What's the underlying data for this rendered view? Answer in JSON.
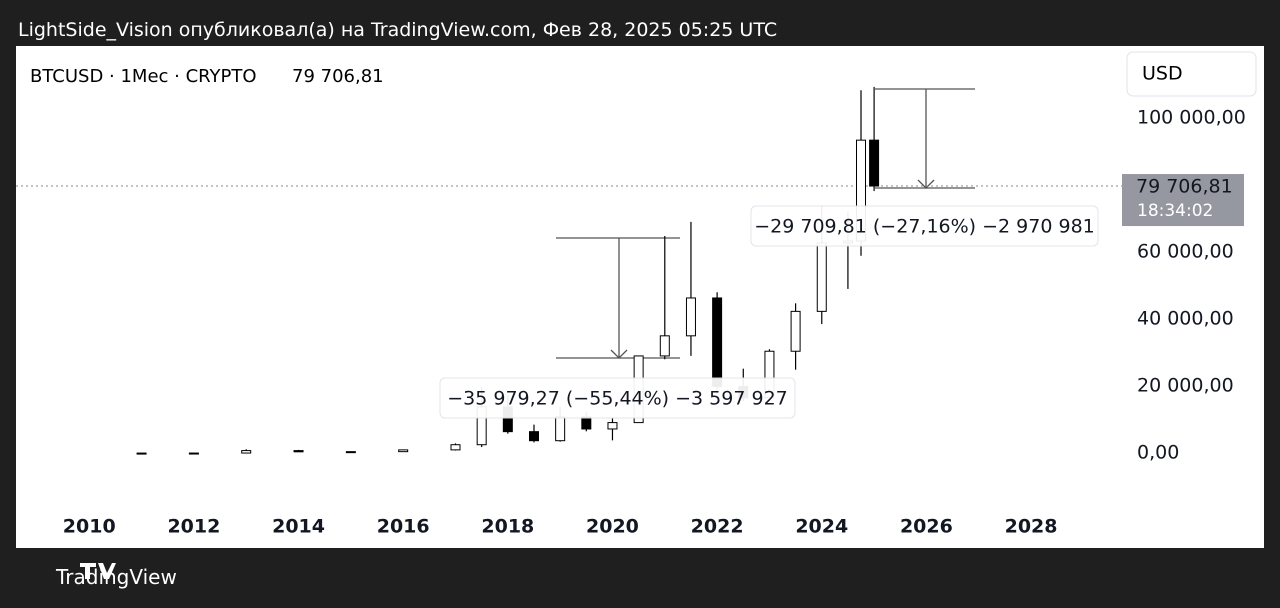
{
  "attribution": "LightSide_Vision опубликовал(а) на TradingView.com, Фев 28, 2025 05:25 UTC",
  "brand": "TradingView",
  "chart_data": {
    "type": "candlestick",
    "title": "BTCUSD · 1Мес · CRYPTO",
    "title_price": "79 706,81",
    "currency": "USD",
    "up_color": "#ffffff",
    "down_color": "#000000",
    "edge_color": "#000000",
    "x": [
      2011.0,
      2012.0,
      2013.0,
      2014.0,
      2015.0,
      2016.0,
      2017.0,
      2017.5,
      2018.0,
      2018.5,
      2019.0,
      2019.5,
      2020.0,
      2020.5,
      2021.0,
      2021.5,
      2022.0,
      2022.5,
      2023.0,
      2023.5,
      2024.0,
      2024.5,
      2024.75,
      2025.0
    ],
    "open": [
      0.3,
      5,
      13,
      750,
      320,
      430,
      960,
      2500,
      13800,
      6400,
      3700,
      10800,
      7200,
      9100,
      29000,
      35000,
      46300,
      19900,
      16500,
      30400,
      42300,
      62700,
      63300,
      93400
    ],
    "high": [
      30,
      13,
      1150,
      950,
      500,
      1000,
      2900,
      19700,
      17200,
      8500,
      13800,
      12300,
      10500,
      29000,
      64800,
      69000,
      48000,
      25200,
      31000,
      44700,
      73800,
      72000,
      108300,
      109300
    ],
    "low": [
      0.3,
      4,
      13,
      340,
      170,
      360,
      750,
      1800,
      5800,
      3200,
      3400,
      6500,
      3800,
      9000,
      28000,
      29000,
      17600,
      15500,
      16300,
      24900,
      38500,
      49000,
      58900,
      78200
    ],
    "close": [
      5,
      13,
      750,
      380,
      430,
      960,
      2500,
      13800,
      6400,
      3700,
      10800,
      7200,
      9100,
      29000,
      35000,
      46300,
      19900,
      16500,
      30400,
      42300,
      62700,
      63300,
      93400,
      79706.81
    ],
    "xlim": [
      2008.6,
      2029.7
    ],
    "xticks": [
      2010,
      2012,
      2014,
      2016,
      2018,
      2020,
      2022,
      2024,
      2026,
      2028
    ],
    "ylim": [
      -14000,
      121500
    ],
    "yticks": [
      {
        "value": 0,
        "label": "0,00"
      },
      {
        "value": 20000,
        "label": "20 000,00"
      },
      {
        "value": 40000,
        "label": "40 000,00"
      },
      {
        "value": 60000,
        "label": "60 000,00"
      },
      {
        "value": 100000,
        "label": "100 000,00"
      }
    ],
    "last_price": {
      "value": 79706.81,
      "label": "79 706,81"
    },
    "countdown": "18:34:02",
    "annotations": [
      "−35 979,27 (−55,44%) −3 597 927",
      "−29 709,81 (−27,16%) −2 970 981"
    ]
  }
}
